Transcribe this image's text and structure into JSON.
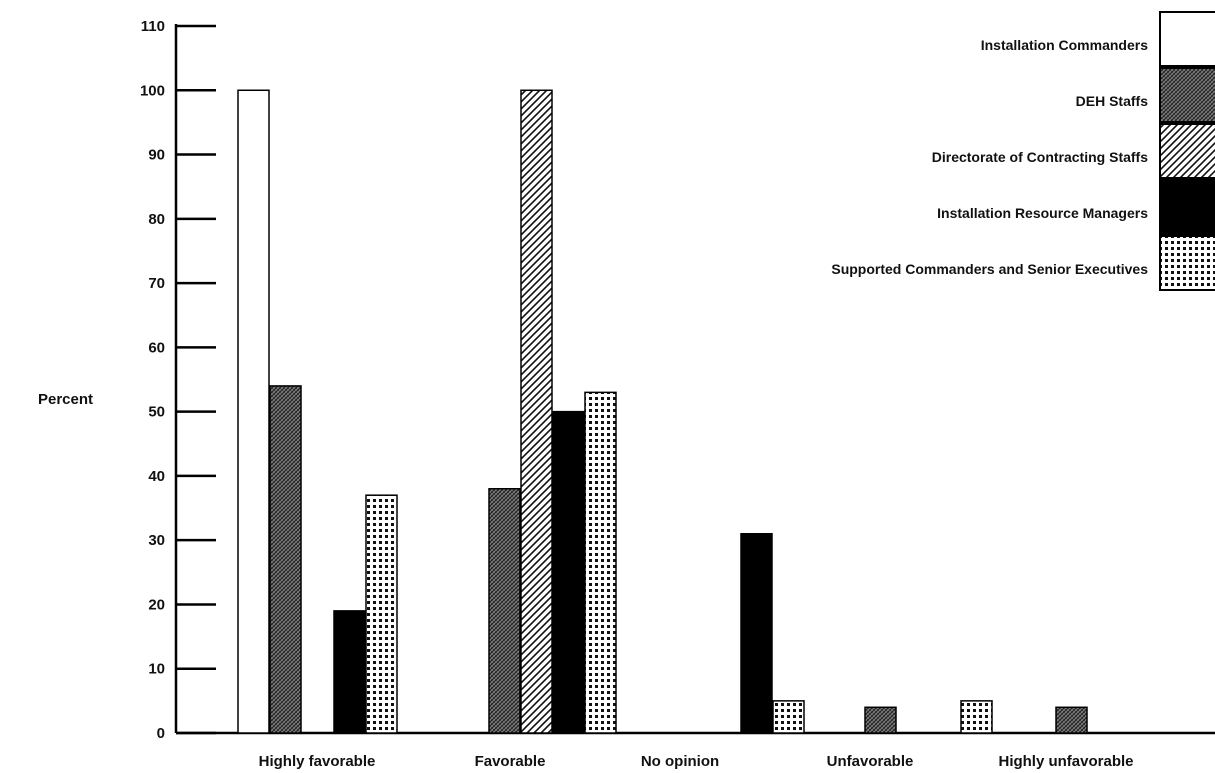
{
  "chart_data": {
    "type": "bar",
    "ylabel": "Percent",
    "ylim": [
      0,
      110
    ],
    "yticks": [
      0,
      10,
      20,
      30,
      40,
      50,
      60,
      70,
      80,
      90,
      100,
      110
    ],
    "grid": false,
    "legend_position": "top-right",
    "categories": [
      "Highly favorable",
      "Favorable",
      "No opinion",
      "Unfavorable",
      "Highly unfavorable"
    ],
    "series": [
      {
        "name": "Installation Commanders",
        "pattern": "white",
        "values": [
          100,
          0,
          0,
          0,
          0
        ]
      },
      {
        "name": "DEH Staffs",
        "pattern": "crosshatch",
        "values": [
          54,
          38,
          0,
          4,
          4
        ]
      },
      {
        "name": "Directorate of Contracting Staffs",
        "pattern": "diagonal",
        "values": [
          0,
          100,
          0,
          0,
          0
        ]
      },
      {
        "name": "Installation Resource Managers",
        "pattern": "solid-black",
        "values": [
          19,
          50,
          31,
          0,
          0
        ]
      },
      {
        "name": "Supported Commanders and Senior Executives",
        "pattern": "dotted",
        "values": [
          37,
          53,
          5,
          5,
          0
        ]
      }
    ]
  }
}
